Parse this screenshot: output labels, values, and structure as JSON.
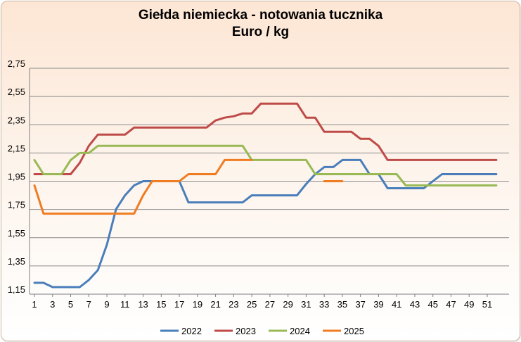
{
  "chart_data": {
    "type": "line",
    "title_line1": "Giełda niemiecka  - notowania tucznika",
    "title_line2": "Euro / kg",
    "xlabel": "",
    "ylabel": "",
    "ylim": [
      1.15,
      2.75
    ],
    "y_ticks": [
      "1,15",
      "1,35",
      "1,55",
      "1,75",
      "1,95",
      "2,15",
      "2,35",
      "2,55",
      "2,75"
    ],
    "x_ticks": [
      "1",
      "3",
      "5",
      "7",
      "9",
      "11",
      "13",
      "15",
      "17",
      "19",
      "21",
      "23",
      "25",
      "27",
      "29",
      "31",
      "33",
      "35",
      "37",
      "39",
      "41",
      "43",
      "45",
      "47",
      "49",
      "51"
    ],
    "x_range": [
      1,
      52
    ],
    "grid": "horizontal",
    "legend_position": "bottom",
    "series": [
      {
        "name": "2022",
        "color": "#4a7ebb",
        "x": [
          1,
          2,
          3,
          4,
          5,
          6,
          7,
          8,
          9,
          10,
          11,
          12,
          13,
          14,
          15,
          16,
          17,
          18,
          19,
          20,
          21,
          22,
          23,
          24,
          25,
          26,
          27,
          28,
          29,
          30,
          31,
          32,
          33,
          34,
          35,
          36,
          37,
          38,
          39,
          40,
          41,
          42,
          43,
          44,
          45,
          46,
          47,
          48,
          49,
          50,
          51,
          52
        ],
        "values": [
          1.23,
          1.23,
          1.2,
          1.2,
          1.2,
          1.2,
          1.25,
          1.32,
          1.5,
          1.75,
          1.85,
          1.92,
          1.95,
          1.95,
          1.95,
          1.95,
          1.95,
          1.8,
          1.8,
          1.8,
          1.8,
          1.8,
          1.8,
          1.8,
          1.85,
          1.85,
          1.85,
          1.85,
          1.85,
          1.85,
          1.93,
          2.0,
          2.05,
          2.05,
          2.1,
          2.1,
          2.1,
          2.0,
          2.0,
          1.9,
          1.9,
          1.9,
          1.9,
          1.9,
          1.95,
          2.0,
          2.0,
          2.0,
          2.0,
          2.0,
          2.0,
          2.0
        ]
      },
      {
        "name": "2023",
        "color": "#be4b48",
        "x": [
          1,
          2,
          3,
          4,
          5,
          6,
          7,
          8,
          9,
          10,
          11,
          12,
          13,
          14,
          15,
          16,
          17,
          18,
          19,
          20,
          21,
          22,
          23,
          24,
          25,
          26,
          27,
          28,
          29,
          30,
          31,
          32,
          33,
          34,
          35,
          36,
          37,
          38,
          39,
          40,
          41,
          42,
          43,
          44,
          45,
          46,
          47,
          48,
          49,
          50,
          51,
          52
        ],
        "values": [
          2.0,
          2.0,
          2.0,
          2.0,
          2.0,
          2.08,
          2.2,
          2.28,
          2.28,
          2.28,
          2.28,
          2.33,
          2.33,
          2.33,
          2.33,
          2.33,
          2.33,
          2.33,
          2.33,
          2.33,
          2.38,
          2.4,
          2.41,
          2.43,
          2.43,
          2.5,
          2.5,
          2.5,
          2.5,
          2.5,
          2.4,
          2.4,
          2.3,
          2.3,
          2.3,
          2.3,
          2.25,
          2.25,
          2.2,
          2.1,
          2.1,
          2.1,
          2.1,
          2.1,
          2.1,
          2.1,
          2.1,
          2.1,
          2.1,
          2.1,
          2.1,
          2.1
        ]
      },
      {
        "name": "2024",
        "color": "#98b954",
        "x": [
          1,
          2,
          3,
          4,
          5,
          6,
          7,
          8,
          9,
          10,
          11,
          12,
          13,
          14,
          15,
          16,
          17,
          18,
          19,
          20,
          21,
          22,
          23,
          24,
          25,
          26,
          27,
          28,
          29,
          30,
          31,
          32,
          33,
          34,
          35,
          36,
          37,
          38,
          39,
          40,
          41,
          42,
          43,
          44,
          45,
          46,
          47,
          48,
          49,
          50,
          51,
          52
        ],
        "values": [
          2.1,
          2.0,
          2.0,
          2.0,
          2.1,
          2.15,
          2.15,
          2.2,
          2.2,
          2.2,
          2.2,
          2.2,
          2.2,
          2.2,
          2.2,
          2.2,
          2.2,
          2.2,
          2.2,
          2.2,
          2.2,
          2.2,
          2.2,
          2.2,
          2.1,
          2.1,
          2.1,
          2.1,
          2.1,
          2.1,
          2.1,
          2.0,
          2.0,
          2.0,
          2.0,
          2.0,
          2.0,
          2.0,
          2.0,
          2.0,
          2.0,
          1.92,
          1.92,
          1.92,
          1.92,
          1.92,
          1.92,
          1.92,
          1.92,
          1.92,
          1.92,
          1.92
        ]
      },
      {
        "name": "2025",
        "color": "#f07c22",
        "x": [
          1,
          2,
          3,
          4,
          5,
          6,
          7,
          8,
          9,
          10,
          11,
          12,
          13,
          14,
          15,
          16,
          17,
          18,
          19,
          20,
          21,
          22,
          23,
          24,
          25,
          26,
          27,
          28,
          29,
          30,
          31,
          32,
          33,
          34,
          35
        ],
        "values": [
          1.92,
          1.72,
          1.72,
          1.72,
          1.72,
          1.72,
          1.72,
          1.72,
          1.72,
          1.72,
          1.72,
          1.72,
          1.85,
          1.95,
          1.95,
          1.95,
          1.95,
          2.0,
          2.0,
          2.0,
          2.0,
          2.1,
          2.1,
          2.1,
          2.1,
          null,
          null,
          null,
          null,
          null,
          null,
          null,
          1.95,
          1.95,
          1.95
        ]
      }
    ]
  }
}
